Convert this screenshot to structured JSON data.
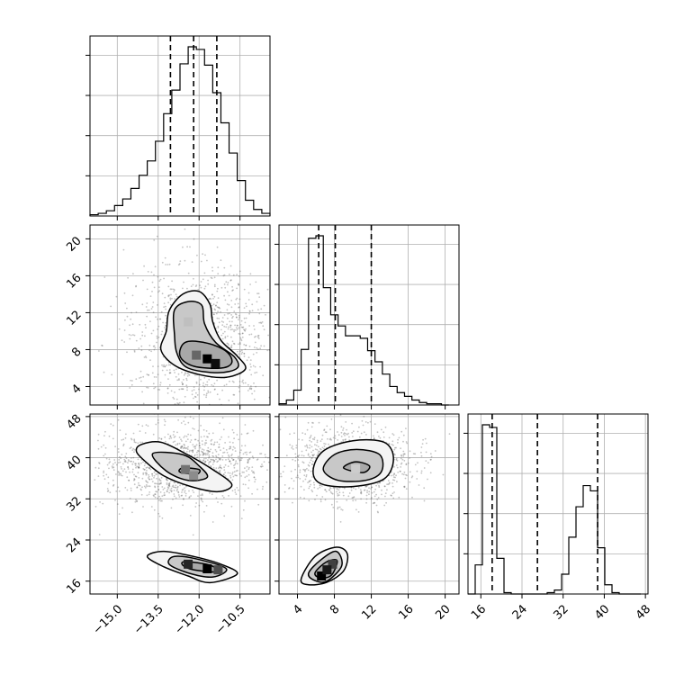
{
  "chart_data": {
    "type": "corner",
    "parameters": [
      {
        "id": "p1",
        "range": [
          -16.0,
          -9.4
        ],
        "ticks": [
          -15.0,
          -13.5,
          -12.0,
          -10.5
        ],
        "tick_labels": [
          "−15.0",
          "−13.5",
          "−12.0",
          "−10.5"
        ],
        "quantiles": [
          -13.05,
          -12.2,
          -11.35
        ],
        "histogram": {
          "bin_edges": [
            -16.0,
            -15.7,
            -15.4,
            -15.1,
            -14.8,
            -14.5,
            -14.2,
            -13.9,
            -13.6,
            -13.3,
            -13.0,
            -12.7,
            -12.4,
            -12.1,
            -11.8,
            -11.5,
            -11.2,
            -10.9,
            -10.6,
            -10.3,
            -10.0,
            -9.7,
            -9.4
          ],
          "counts": [
            1,
            2,
            4,
            8,
            13,
            21,
            31,
            42,
            57,
            78,
            96,
            116,
            129,
            127,
            115,
            94,
            71,
            48,
            27,
            12,
            5,
            2
          ]
        }
      },
      {
        "id": "p2",
        "range": [
          2.0,
          21.5
        ],
        "ticks": [
          4,
          8,
          12,
          16,
          20
        ],
        "tick_labels": [
          "4",
          "8",
          "12",
          "16",
          "20"
        ],
        "quantiles": [
          6.3,
          8.1,
          12.0
        ],
        "histogram": {
          "bin_edges": [
            2.0,
            2.8,
            3.6,
            4.4,
            5.2,
            6.0,
            6.8,
            7.6,
            8.4,
            9.2,
            10.0,
            10.8,
            11.6,
            12.4,
            13.2,
            14.0,
            14.8,
            15.6,
            16.4,
            17.2,
            18.0,
            18.8,
            19.6,
            20.4
          ],
          "counts": [
            1,
            4,
            12,
            45,
            135,
            137,
            95,
            73,
            64,
            56,
            56,
            54,
            44,
            35,
            25,
            15,
            10,
            7,
            4,
            2,
            1,
            1,
            0
          ]
        }
      },
      {
        "id": "p3",
        "range": [
          13.5,
          48.5
        ],
        "ticks": [
          16,
          24,
          32,
          40,
          48
        ],
        "tick_labels": [
          "16",
          "24",
          "32",
          "40",
          "48"
        ],
        "quantiles": [
          18.2,
          27.0,
          38.7
        ],
        "histogram": {
          "bin_edges": [
            13.5,
            14.9,
            16.3,
            17.7,
            19.1,
            20.5,
            21.9,
            23.3,
            24.7,
            26.1,
            27.5,
            28.9,
            30.3,
            31.7,
            33.1,
            34.5,
            35.9,
            37.3,
            38.7,
            40.1,
            41.5,
            42.9,
            44.3,
            45.7,
            47.1
          ],
          "counts": [
            0,
            22,
            128,
            126,
            27,
            1,
            0,
            0,
            0,
            0,
            0,
            1,
            3,
            15,
            43,
            66,
            82,
            78,
            35,
            7,
            1,
            0,
            0,
            0
          ]
        }
      }
    ],
    "pairs": [
      {
        "x": "p1",
        "y": "p2",
        "contours": [
          [
            [
              -13.2,
              10.0
            ],
            [
              -13.1,
              12.2
            ],
            [
              -12.6,
              14.0
            ],
            [
              -12.0,
              14.3
            ],
            [
              -11.6,
              12.9
            ],
            [
              -11.5,
              11.0
            ],
            [
              -11.2,
              9.0
            ],
            [
              -10.6,
              7.3
            ],
            [
              -10.3,
              5.9
            ],
            [
              -11.0,
              5.0
            ],
            [
              -12.0,
              5.3
            ],
            [
              -12.9,
              6.3
            ],
            [
              -13.4,
              8.0
            ]
          ],
          [
            [
              -12.9,
              9.6
            ],
            [
              -12.9,
              12.3
            ],
            [
              -12.4,
              13.2
            ],
            [
              -11.9,
              12.8
            ],
            [
              -11.8,
              10.8
            ],
            [
              -11.4,
              8.8
            ],
            [
              -10.7,
              7.2
            ],
            [
              -10.6,
              6.0
            ],
            [
              -11.3,
              5.5
            ],
            [
              -12.4,
              6.0
            ],
            [
              -12.8,
              7.5
            ]
          ],
          [
            [
              -12.5,
              8.8
            ],
            [
              -11.7,
              8.7
            ],
            [
              -11.0,
              7.8
            ],
            [
              -10.8,
              6.6
            ],
            [
              -11.2,
              6.0
            ],
            [
              -12.2,
              6.2
            ],
            [
              -12.7,
              7.3
            ]
          ]
        ],
        "density_peaks": [
          [
            -11.7,
            7.0,
            1.0
          ],
          [
            -11.4,
            6.5,
            0.95
          ],
          [
            -12.1,
            7.4,
            0.6
          ],
          [
            -12.4,
            11.0,
            0.25
          ]
        ]
      },
      {
        "x": "p1",
        "y": "p3",
        "contours": [
          [
            [
              -14.1,
              42.6
            ],
            [
              -13.4,
              43.0
            ],
            [
              -12.5,
              40.8
            ],
            [
              -11.5,
              37.7
            ],
            [
              -10.8,
              34.8
            ],
            [
              -11.3,
              33.4
            ],
            [
              -12.3,
              34.4
            ],
            [
              -13.3,
              36.5
            ],
            [
              -14.0,
              39.4
            ],
            [
              -14.3,
              41.3
            ]
          ],
          [
            [
              -13.7,
              40.8
            ],
            [
              -12.6,
              40.6
            ],
            [
              -12.0,
              38.4
            ],
            [
              -11.7,
              36.2
            ],
            [
              -12.4,
              35.6
            ],
            [
              -13.2,
              37.4
            ]
          ],
          [
            [
              -12.6,
              38.0
            ],
            [
              -12.0,
              37.7
            ],
            [
              -12.1,
              36.8
            ],
            [
              -12.7,
              37.2
            ]
          ],
          [
            [
              -13.3,
              21.8
            ],
            [
              -12.2,
              20.8
            ],
            [
              -11.2,
              19.3
            ],
            [
              -10.6,
              17.4
            ],
            [
              -11.6,
              15.7
            ],
            [
              -12.4,
              17.0
            ],
            [
              -13.3,
              18.8
            ],
            [
              -13.9,
              20.8
            ]
          ],
          [
            [
              -12.9,
              20.8
            ],
            [
              -12.0,
              20.2
            ],
            [
              -11.0,
              18.4
            ],
            [
              -11.5,
              16.8
            ],
            [
              -12.4,
              17.6
            ],
            [
              -13.1,
              19.3
            ]
          ],
          [
            [
              -12.5,
              19.8
            ],
            [
              -11.6,
              19.1
            ],
            [
              -11.3,
              17.8
            ],
            [
              -12.2,
              18.2
            ],
            [
              -12.6,
              19.1
            ]
          ]
        ],
        "density_peaks": [
          [
            -12.5,
            37.7,
            0.55
          ],
          [
            -12.2,
            36.5,
            0.45
          ],
          [
            -12.4,
            19.3,
            0.85
          ],
          [
            -11.7,
            18.4,
            1.0
          ],
          [
            -11.3,
            18.2,
            0.7
          ]
        ]
      },
      {
        "x": "p2",
        "y": "p3",
        "contours": [
          [
            [
              5.7,
              37.5
            ],
            [
              6.8,
              41.3
            ],
            [
              10.0,
              43.3
            ],
            [
              13.4,
              43.0
            ],
            [
              14.4,
              39.8
            ],
            [
              13.4,
              35.9
            ],
            [
              10.0,
              34.4
            ],
            [
              6.6,
              34.9
            ]
          ],
          [
            [
              6.8,
              37.7
            ],
            [
              8.0,
              40.6
            ],
            [
              10.4,
              41.6
            ],
            [
              12.9,
              40.6
            ],
            [
              13.1,
              37.3
            ],
            [
              11.4,
              35.6
            ],
            [
              8.4,
              35.6
            ]
          ],
          [
            [
              9.0,
              38.0
            ],
            [
              10.3,
              39.2
            ],
            [
              11.8,
              38.4
            ],
            [
              11.1,
              37.1
            ]
          ],
          [
            [
              4.4,
              16.4
            ],
            [
              5.9,
              20.8
            ],
            [
              8.2,
              22.6
            ],
            [
              9.4,
              21.3
            ],
            [
              9.0,
              18.0
            ],
            [
              7.2,
              15.8
            ],
            [
              5.2,
              15.3
            ]
          ],
          [
            [
              5.2,
              17.5
            ],
            [
              6.5,
              20.1
            ],
            [
              8.2,
              21.8
            ],
            [
              8.8,
              19.0
            ],
            [
              7.2,
              16.0
            ],
            [
              5.9,
              16.1
            ]
          ],
          [
            [
              5.9,
              17.6
            ],
            [
              7.1,
              19.7
            ],
            [
              8.3,
              20.0
            ],
            [
              7.7,
              17.2
            ],
            [
              6.5,
              16.6
            ]
          ]
        ],
        "density_peaks": [
          [
            6.6,
            17.0,
            1.0
          ],
          [
            7.8,
            19.3,
            0.75
          ],
          [
            7.2,
            18.2,
            0.9
          ],
          [
            10.3,
            37.9,
            0.2
          ]
        ]
      }
    ]
  }
}
